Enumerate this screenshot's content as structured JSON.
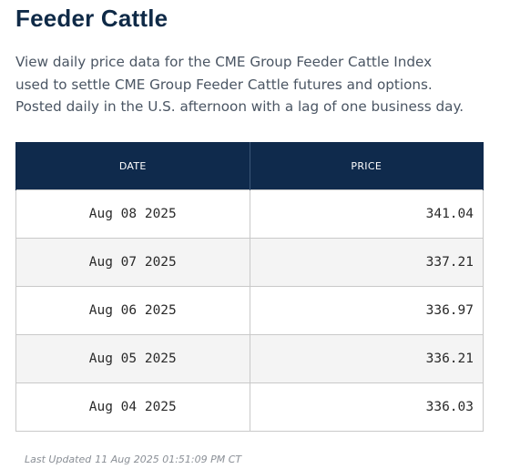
{
  "page": {
    "title": "Feeder Cattle",
    "description_lines": [
      "View daily price data for the CME Group Feeder Cattle Index",
      "used to settle CME Group Feeder Cattle futures and options.",
      "Posted daily in the U.S. afternoon with a lag of one business day."
    ]
  },
  "table": {
    "headers": {
      "date": "DATE",
      "price": "PRICE"
    },
    "rows": [
      {
        "date": "Aug 08 2025",
        "price": "341.04"
      },
      {
        "date": "Aug 07 2025",
        "price": "337.21"
      },
      {
        "date": "Aug 06 2025",
        "price": "336.97"
      },
      {
        "date": "Aug 05 2025",
        "price": "336.21"
      },
      {
        "date": "Aug 04 2025",
        "price": "336.03"
      }
    ]
  },
  "footer": {
    "last_updated_label": "Last Updated",
    "last_updated_value": "11 Aug 2025 01:51:09 PM CT"
  },
  "colors": {
    "header_bg": "#0f2a4c",
    "title": "#0f2a47",
    "row_alt_bg": "#f4f4f4",
    "border": "#c9c9c9"
  }
}
